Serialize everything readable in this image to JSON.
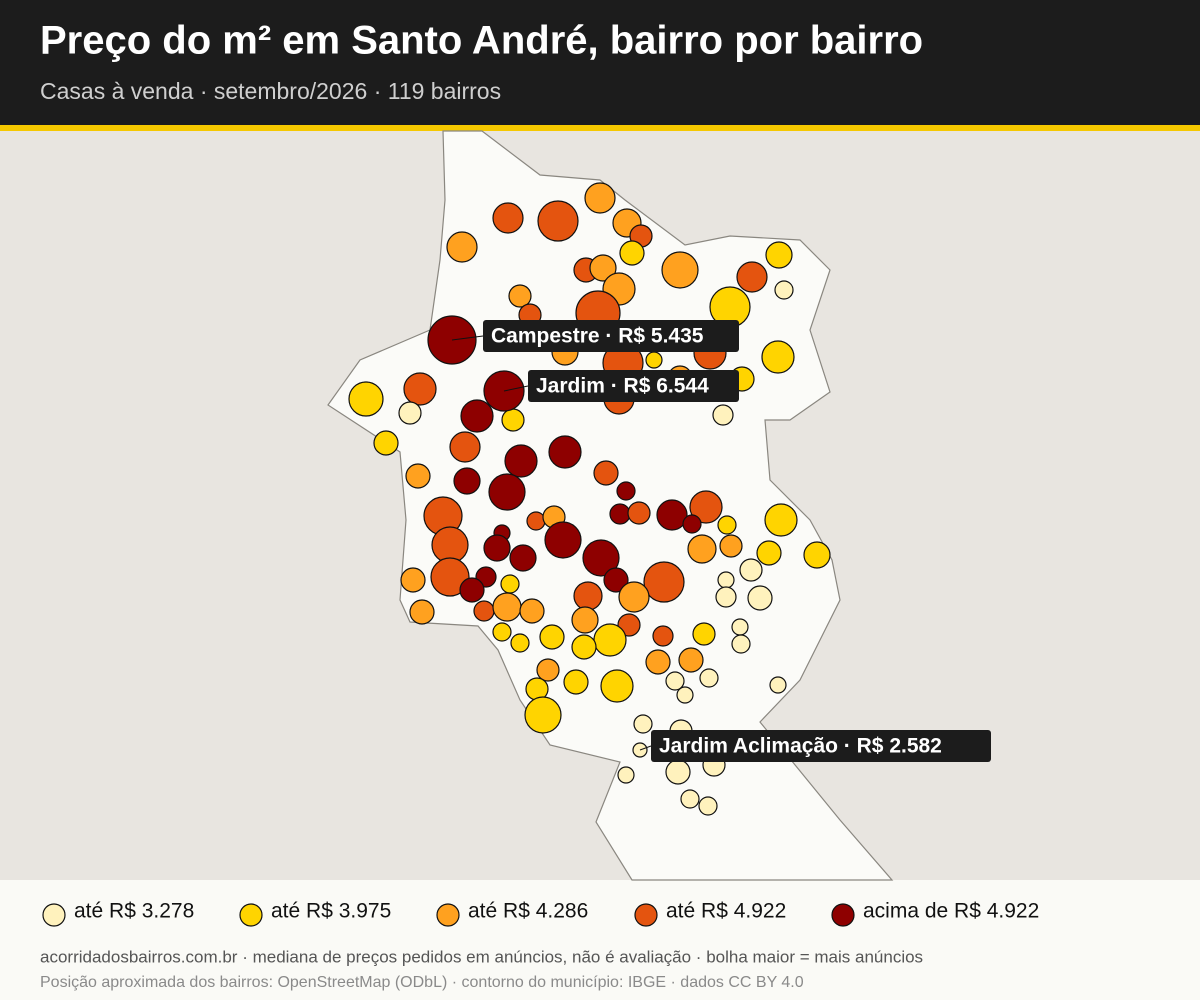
{
  "header": {
    "title": "Preço do m² em Santo André, bairro por bairro",
    "subtitle": "Casas à venda · setembro/2026 · 119 bairros"
  },
  "callouts": [
    {
      "label": "Campestre · R$ 5.435"
    },
    {
      "label": "Jardim · R$ 6.544"
    },
    {
      "label": "Jardim Aclimação · R$ 2.582"
    }
  ],
  "legend": [
    {
      "label": "até R$ 3.278",
      "color": "#fff2bd"
    },
    {
      "label": "até R$ 3.975",
      "color": "#ffd400"
    },
    {
      "label": "até R$ 4.286",
      "color": "#ffa11f"
    },
    {
      "label": "até R$ 4.922",
      "color": "#e4540f"
    },
    {
      "label": "acima de R$ 4.922",
      "color": "#8e0000"
    }
  ],
  "footer": {
    "line1": "acorridadosbairros.com.br · mediana de preços pedidos em anúncios, não é avaliação · bolha maior = mais anúncios",
    "line2": "Posição aproximada dos bairros: OpenStreetMap (ODbL) · contorno do município: IBGE · dados CC BY 4.0"
  }
}
